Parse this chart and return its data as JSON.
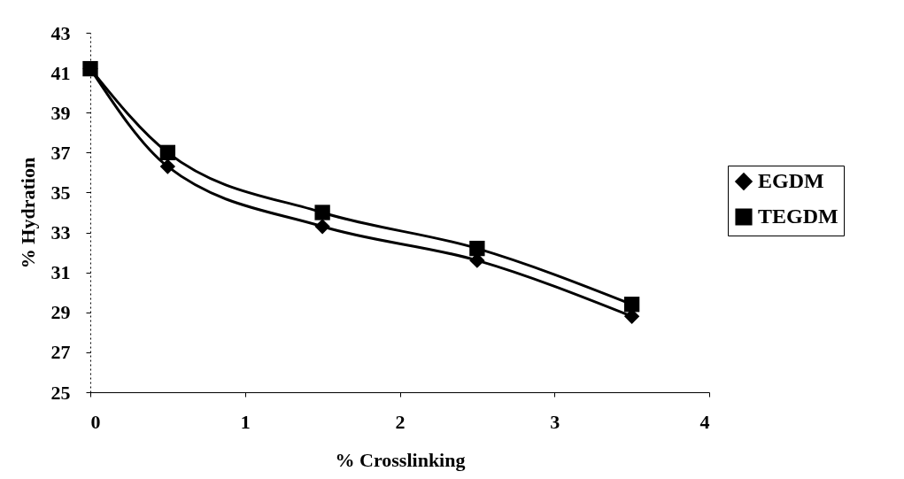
{
  "chart_data": {
    "type": "line",
    "xlabel": "% Crosslinking",
    "ylabel": "% Hydration",
    "x": [
      0,
      0.5,
      1.5,
      2.5,
      3.5
    ],
    "series": [
      {
        "name": "EGDM",
        "color": "#000000",
        "marker": "diamond",
        "values": [
          41.2,
          36.3,
          33.3,
          31.6,
          28.8
        ]
      },
      {
        "name": "TEGDM",
        "color": "#000000",
        "marker": "square",
        "values": [
          41.2,
          37.0,
          34.0,
          32.2,
          29.4
        ]
      }
    ],
    "xlim": [
      0,
      4
    ],
    "xticks": [
      0,
      1,
      2,
      3,
      4
    ],
    "ylim": [
      25,
      43
    ],
    "yticks": [
      25,
      27,
      29,
      31,
      33,
      35,
      37,
      39,
      41,
      43
    ],
    "grid": false,
    "legend": "right",
    "line_style": "solid"
  }
}
